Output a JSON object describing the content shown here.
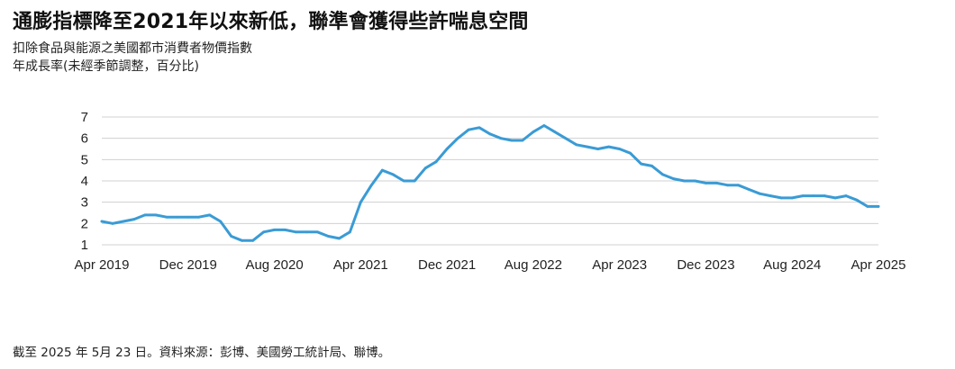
{
  "header": {
    "title": "通膨指標降至2021年以來新低，聯準會獲得些許喘息空間",
    "subtitle_line1": "扣除食品與能源之美國都市消費者物價指數",
    "subtitle_line2": "年成長率(未經季節調整，百分比)"
  },
  "footer": {
    "note": "截至 2025 年 5月 23 日。資料來源：彭博、美國勞工統計局、聯博。"
  },
  "chart_data": {
    "type": "line",
    "title": "通膨指標降至2021年以來新低，聯準會獲得些許喘息空間",
    "subtitle": "扣除食品與能源之美國都市消費者物價指數 年成長率(未經季節調整，百分比)",
    "xlabel": "",
    "ylabel": "",
    "ylim": [
      1,
      7
    ],
    "yticks": [
      1,
      2,
      3,
      4,
      5,
      6,
      7
    ],
    "xticks": [
      "Apr 2019",
      "Dec 2019",
      "Aug 2020",
      "Apr 2021",
      "Dec 2021",
      "Aug 2022",
      "Apr 2023",
      "Dec 2023",
      "Aug 2024",
      "Apr 2025"
    ],
    "grid": true,
    "line_color": "#3a9bd5",
    "x": [
      "2019-04",
      "2019-05",
      "2019-06",
      "2019-07",
      "2019-08",
      "2019-09",
      "2019-10",
      "2019-11",
      "2019-12",
      "2020-01",
      "2020-02",
      "2020-03",
      "2020-04",
      "2020-05",
      "2020-06",
      "2020-07",
      "2020-08",
      "2020-09",
      "2020-10",
      "2020-11",
      "2020-12",
      "2021-01",
      "2021-02",
      "2021-03",
      "2021-04",
      "2021-05",
      "2021-06",
      "2021-07",
      "2021-08",
      "2021-09",
      "2021-10",
      "2021-11",
      "2021-12",
      "2022-01",
      "2022-02",
      "2022-03",
      "2022-04",
      "2022-05",
      "2022-06",
      "2022-07",
      "2022-08",
      "2022-09",
      "2022-10",
      "2022-11",
      "2022-12",
      "2023-01",
      "2023-02",
      "2023-03",
      "2023-04",
      "2023-05",
      "2023-06",
      "2023-07",
      "2023-08",
      "2023-09",
      "2023-10",
      "2023-11",
      "2023-12",
      "2024-01",
      "2024-02",
      "2024-03",
      "2024-04",
      "2024-05",
      "2024-06",
      "2024-07",
      "2024-08",
      "2024-09",
      "2024-10",
      "2024-11",
      "2024-12",
      "2025-01",
      "2025-02",
      "2025-03",
      "2025-04"
    ],
    "values": [
      2.1,
      2.0,
      2.1,
      2.2,
      2.4,
      2.4,
      2.3,
      2.3,
      2.3,
      2.3,
      2.4,
      2.1,
      1.4,
      1.2,
      1.2,
      1.6,
      1.7,
      1.7,
      1.6,
      1.6,
      1.6,
      1.4,
      1.3,
      1.6,
      3.0,
      3.8,
      4.5,
      4.3,
      4.0,
      4.0,
      4.6,
      4.9,
      5.5,
      6.0,
      6.4,
      6.5,
      6.2,
      6.0,
      5.9,
      5.9,
      6.3,
      6.6,
      6.3,
      6.0,
      5.7,
      5.6,
      5.5,
      5.6,
      5.5,
      5.3,
      4.8,
      4.7,
      4.3,
      4.1,
      4.0,
      4.0,
      3.9,
      3.9,
      3.8,
      3.8,
      3.6,
      3.4,
      3.3,
      3.2,
      3.2,
      3.3,
      3.3,
      3.3,
      3.2,
      3.3,
      3.1,
      2.8,
      2.8
    ]
  }
}
